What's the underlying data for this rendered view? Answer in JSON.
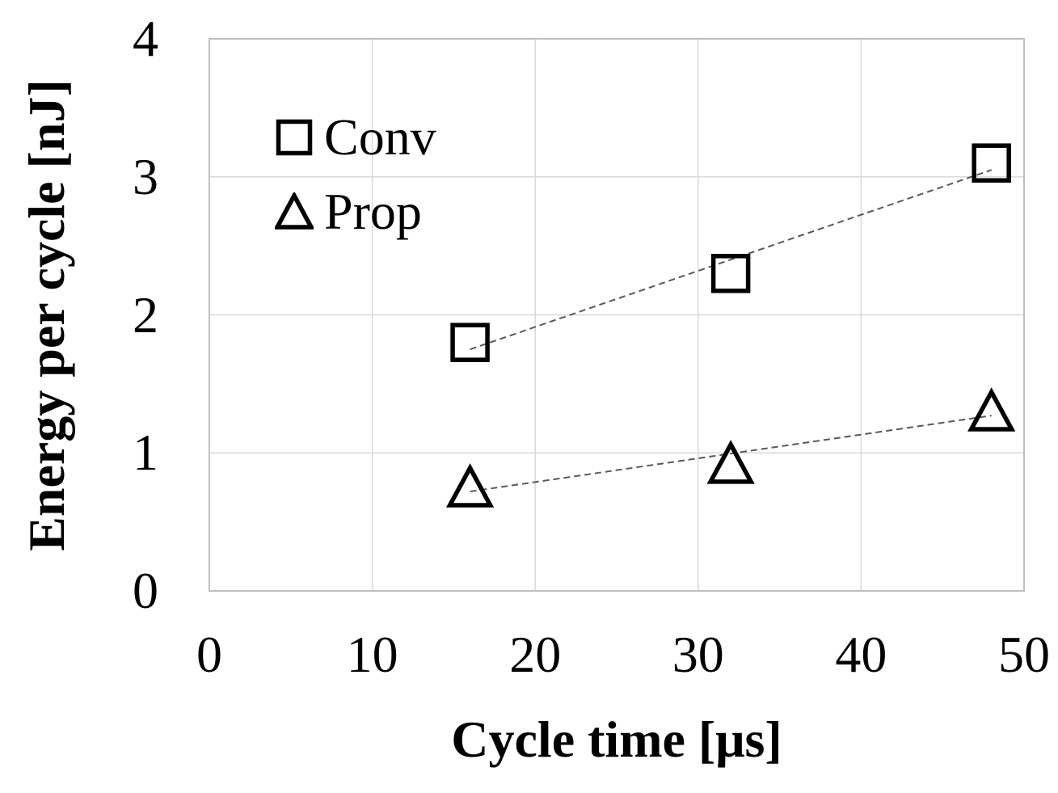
{
  "chart_data": {
    "type": "scatter",
    "title": "",
    "xlabel": "Cycle time [μs]",
    "ylabel": "Energy per cycle [nJ]",
    "xlim": [
      0,
      50
    ],
    "ylim": [
      0,
      4
    ],
    "x_ticks": [
      0,
      10,
      20,
      30,
      40,
      50
    ],
    "y_ticks": [
      0,
      1,
      2,
      3,
      4
    ],
    "grid": true,
    "legend_position": "inside-top-left",
    "series": [
      {
        "name": "Conv",
        "marker": "square",
        "x": [
          16,
          32,
          48
        ],
        "values": [
          1.8,
          2.3,
          3.1
        ],
        "trendline": {
          "x1": 16,
          "y1": 1.75,
          "x2": 48,
          "y2": 3.05
        }
      },
      {
        "name": "Prop",
        "marker": "triangle",
        "x": [
          16,
          32,
          48
        ],
        "values": [
          0.75,
          0.92,
          1.3
        ],
        "trendline": {
          "x1": 16,
          "y1": 0.72,
          "x2": 48,
          "y2": 1.27
        }
      }
    ],
    "colors": {
      "marker": "#000000",
      "trendline": "#595959",
      "gridline": "#d9d9d9",
      "plot_border": "#bfbfbf",
      "text": "#000000",
      "background": "#ffffff"
    }
  }
}
